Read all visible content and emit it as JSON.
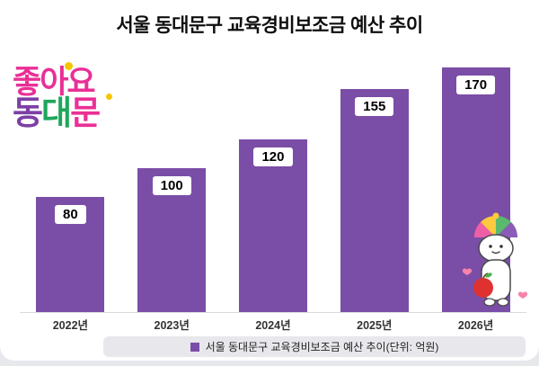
{
  "page": {
    "background": "#e7e8ec",
    "card_background": "#ffffff"
  },
  "title": "서울 동대문구 교육경비보조금 예산 추이",
  "logo": {
    "line1_chars": [
      {
        "ch": "좋",
        "color": "#ea2f96"
      },
      {
        "ch": "아",
        "color": "#ea2f96"
      },
      {
        "ch": "요",
        "color": "#ea2f96"
      }
    ],
    "line2_chars": [
      {
        "ch": "동",
        "color": "#7c3fa5"
      },
      {
        "ch": "대",
        "color": "#1fa65c"
      },
      {
        "ch": "문",
        "color": "#ea2f96"
      }
    ]
  },
  "legend": {
    "label": "서울 동대문구 교육경비보조금 예산 추이(단위: 억원)",
    "marker_color": "#7a4ea6"
  },
  "colors": {
    "bar": "#7a4ea6",
    "value_label_bg": "#ffffff",
    "value_label_text": "#000000",
    "axis_line": "#d9d9de",
    "legend_bg": "#e8e8ec"
  },
  "chart_data": {
    "type": "bar",
    "title": "서울 동대문구 교육경비보조금 예산 추이",
    "categories": [
      "2022년",
      "2023년",
      "2024년",
      "2025년",
      "2026년"
    ],
    "values": [
      80,
      100,
      120,
      155,
      170
    ],
    "xlabel": "",
    "ylabel": "",
    "unit": "억원",
    "ylim": [
      0,
      180
    ],
    "grid": false,
    "legend_position": "bottom",
    "value_labels": "inside-top"
  },
  "mascot": {
    "name": "dongdaemun-mascot-character"
  }
}
